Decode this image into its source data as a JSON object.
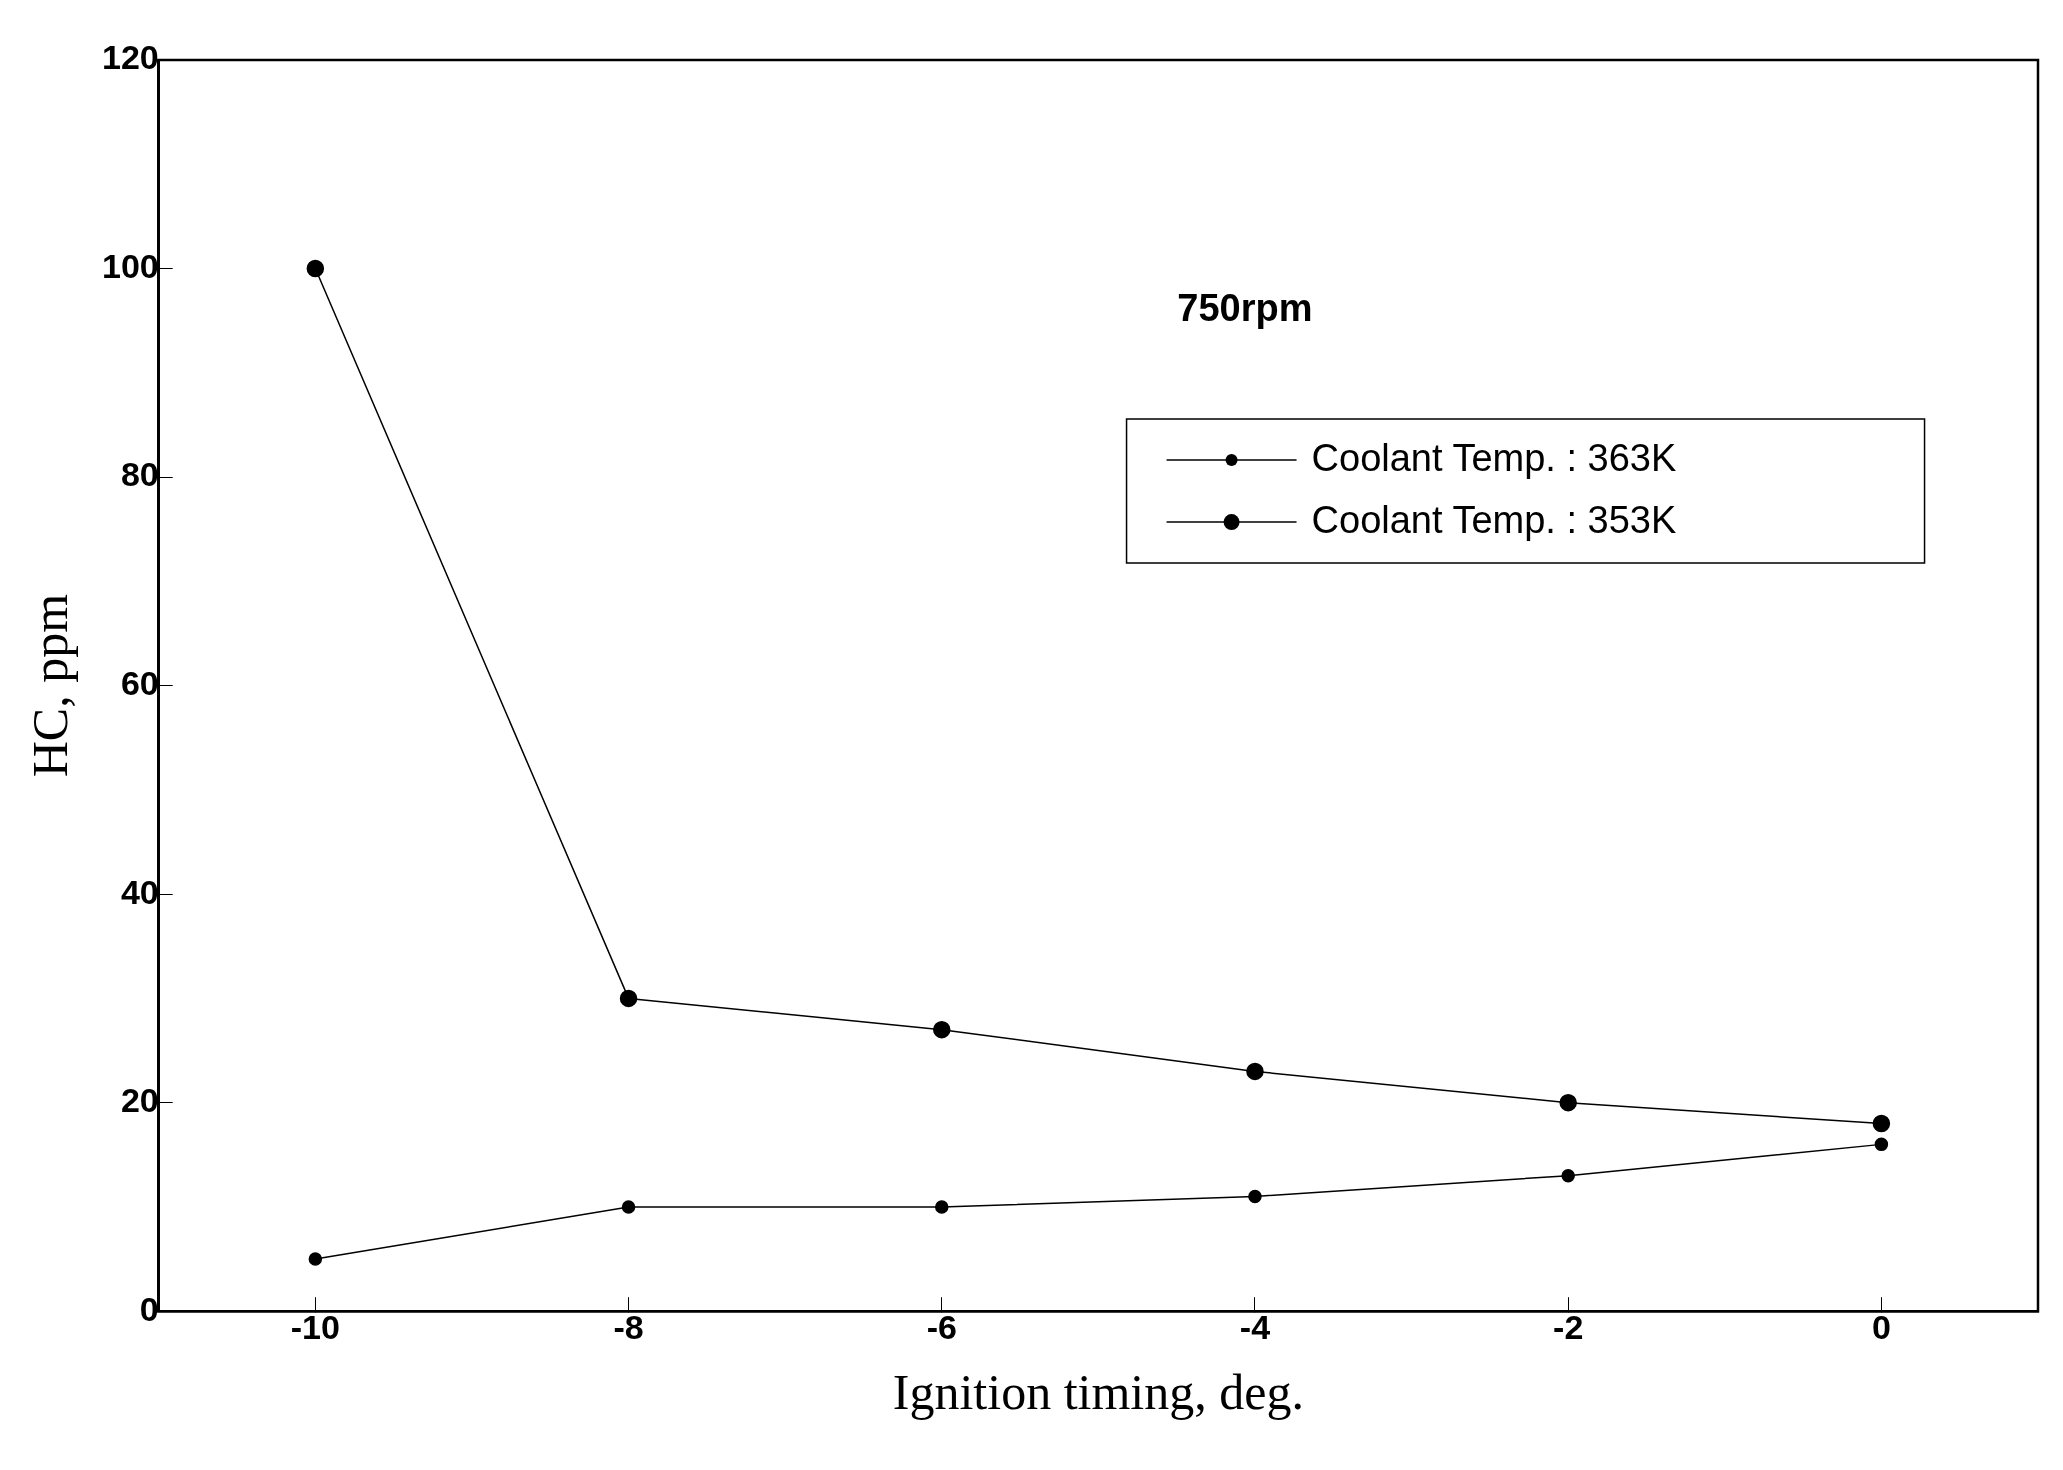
{
  "chart_data": {
    "type": "line",
    "xlabel": "Ignition timing, deg.",
    "ylabel": "HC, ppm",
    "annotations": [
      "750rpm"
    ],
    "x": [
      -10,
      -8,
      -6,
      -4,
      -2,
      0
    ],
    "series": [
      {
        "name": "Coolant Temp. : 363K",
        "color": "#000000",
        "values": [
          5,
          10,
          10,
          11,
          13,
          16
        ]
      },
      {
        "name": "Coolant Temp. : 353K",
        "color": "#000000",
        "values": [
          100,
          30,
          27,
          23,
          20,
          18
        ]
      }
    ],
    "xlim": [
      -11,
      1
    ],
    "xticks": [
      -10,
      -8,
      -6,
      -4,
      -2,
      0
    ],
    "ylim": [
      0,
      120
    ],
    "yticks": [
      0,
      20,
      40,
      60,
      80,
      100,
      120
    ],
    "grid": false,
    "legend": "top right",
    "marker": "circle",
    "line_style": "solid"
  }
}
